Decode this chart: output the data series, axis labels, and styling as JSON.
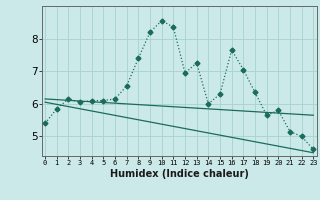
{
  "title": "",
  "xlabel": "Humidex (Indice chaleur)",
  "ylabel": "",
  "background_color": "#cce9e9",
  "grid_color": "#aad4d4",
  "line_color": "#1a6b5a",
  "x_ticks": [
    0,
    1,
    2,
    3,
    4,
    5,
    6,
    7,
    8,
    9,
    10,
    11,
    12,
    13,
    14,
    15,
    16,
    17,
    18,
    19,
    20,
    21,
    22,
    23
  ],
  "y_ticks": [
    5,
    6,
    7,
    8
  ],
  "ylim": [
    4.4,
    9.0
  ],
  "xlim": [
    -0.3,
    23.3
  ],
  "line1_x": [
    0,
    1,
    2,
    3,
    4,
    5,
    6,
    7,
    8,
    9,
    10,
    11,
    12,
    13,
    14,
    15,
    16,
    17,
    18,
    19,
    20,
    21,
    22,
    23
  ],
  "line1_y": [
    5.4,
    5.85,
    6.15,
    6.05,
    6.1,
    6.1,
    6.15,
    6.55,
    7.4,
    8.2,
    8.55,
    8.35,
    6.95,
    7.25,
    6.0,
    6.3,
    7.65,
    7.05,
    6.35,
    5.65,
    5.8,
    5.15,
    5.0,
    4.6
  ],
  "line2_x": [
    0,
    23
  ],
  "line2_y": [
    6.15,
    5.65
  ],
  "line3_x": [
    0,
    23
  ],
  "line3_y": [
    6.05,
    4.5
  ],
  "marker": "D",
  "markersize": 2.5,
  "linewidth": 0.9
}
